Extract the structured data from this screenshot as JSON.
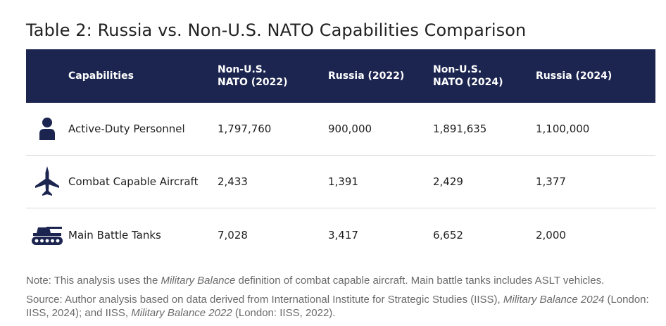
{
  "title": "Table 2: Russia vs. Non-U.S. NATO Capabilities Comparison",
  "colors": {
    "header_bg": "#1c2550",
    "icon": "#1c2550",
    "note_text": "#6a6a6a"
  },
  "table": {
    "headers": {
      "capabilities": "Capabilities",
      "nato_2022_line1": "Non-U.S.",
      "nato_2022_line2": "NATO (2022)",
      "russia_2022": "Russia (2022)",
      "nato_2024_line1": "Non-U.S.",
      "nato_2024_line2": "NATO (2024)",
      "russia_2024": "Russia (2024)"
    },
    "rows": [
      {
        "icon": "person-icon",
        "capability": "Active-Duty Personnel",
        "nato_2022": "1,797,760",
        "russia_2022": "900,000",
        "nato_2024": "1,891,635",
        "russia_2024": "1,100,000"
      },
      {
        "icon": "fighter-jet-icon",
        "capability": "Combat Capable Aircraft",
        "nato_2022": "2,433",
        "russia_2022": "1,391",
        "nato_2024": "2,429",
        "russia_2024": "1,377"
      },
      {
        "icon": "tank-icon",
        "capability": "Main Battle Tanks",
        "nato_2022": "7,028",
        "russia_2022": "3,417",
        "nato_2024": "6,652",
        "russia_2024": "2,000"
      }
    ]
  },
  "note": {
    "prefix": "Note: This analysis uses the ",
    "italic": "Military Balance",
    "suffix": " definition of combat capable aircraft. Main battle tanks includes ASLT vehicles."
  },
  "source": {
    "part1": "Source: Author analysis based on data derived from International Institute for Strategic Studies (IISS), ",
    "italic1": "Military Balance 2024",
    "part2": " (London: IISS, 2024); and IISS, ",
    "italic2": "Military Balance 2022",
    "part3": " (London: IISS, 2022)."
  }
}
